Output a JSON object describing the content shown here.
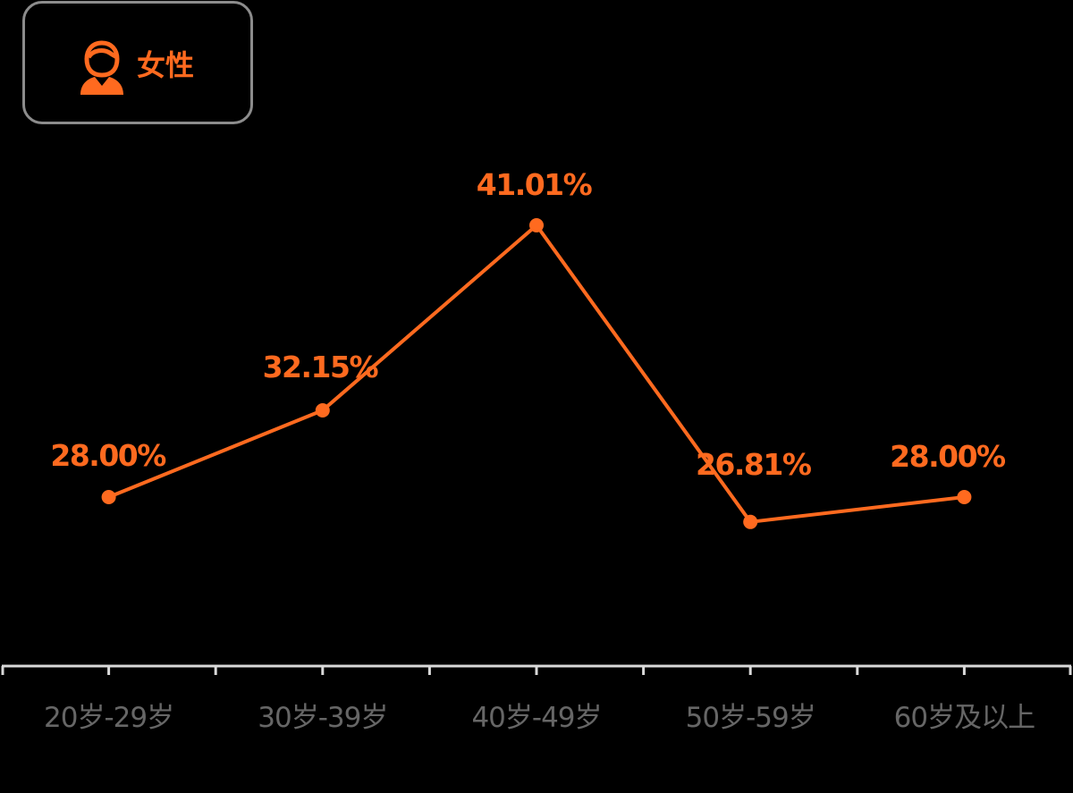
{
  "legend": {
    "label": "女性",
    "icon": "female-user-icon",
    "color": "#ff6a1f"
  },
  "chart_data": {
    "type": "line",
    "categories": [
      "20岁-29岁",
      "30岁-39岁",
      "40岁-49岁",
      "50岁-59岁",
      "60岁及以上"
    ],
    "series": [
      {
        "name": "女性",
        "values": [
          28.0,
          32.15,
          41.01,
          26.81,
          28.0
        ],
        "labels": [
          "28.00%",
          "32.15%",
          "41.01%",
          "26.81%",
          "28.00%"
        ],
        "color": "#ff6a1f"
      }
    ],
    "unit": "%",
    "grid": false,
    "legend_position": "top-left",
    "axis_color": "#d9d9d9",
    "tick_label_color": "#666666"
  }
}
